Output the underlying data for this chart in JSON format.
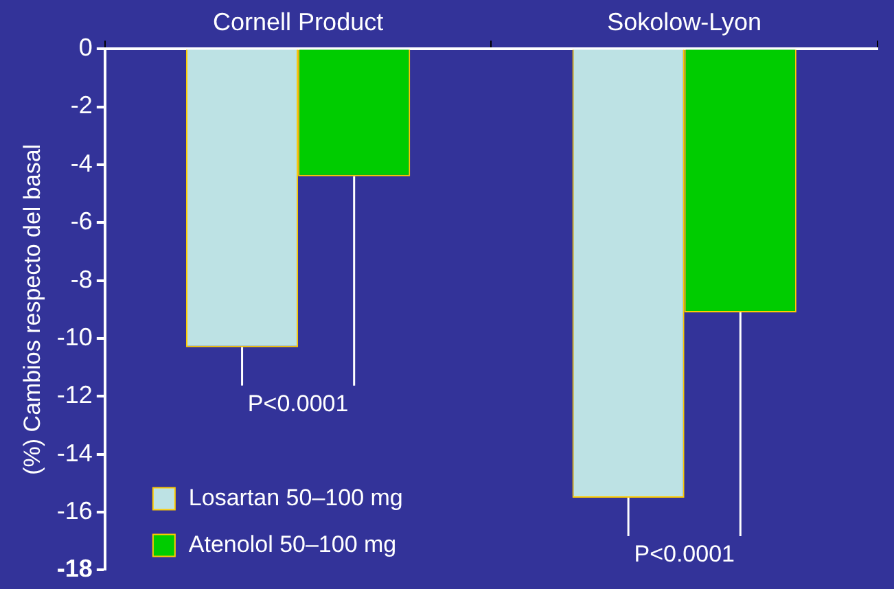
{
  "chart_data": {
    "type": "bar",
    "ylabel": "(%) Cambios respecto del basal",
    "categories": [
      "Cornell Product",
      "Sokolow-Lyon"
    ],
    "series": [
      {
        "name": "Losartan 50–100 mg",
        "color": "#bde2e4",
        "values": [
          -10.3,
          -15.5
        ]
      },
      {
        "name": "Atenolol 50–100 mg",
        "color": "#00cc00",
        "values": [
          -4.4,
          -9.1
        ]
      }
    ],
    "ylim": [
      -18,
      0
    ],
    "yticks": [
      0,
      -2,
      -4,
      -6,
      -8,
      -10,
      -12,
      -14,
      -16,
      -18
    ],
    "grid": false,
    "legend": "bottom left",
    "annotations": [
      {
        "text": "P<0.0001",
        "x": "Cornell Product",
        "y": -10.3
      },
      {
        "text": "P<0.0001",
        "x": "Sokolow-Lyon",
        "y": -15.5
      }
    ]
  }
}
